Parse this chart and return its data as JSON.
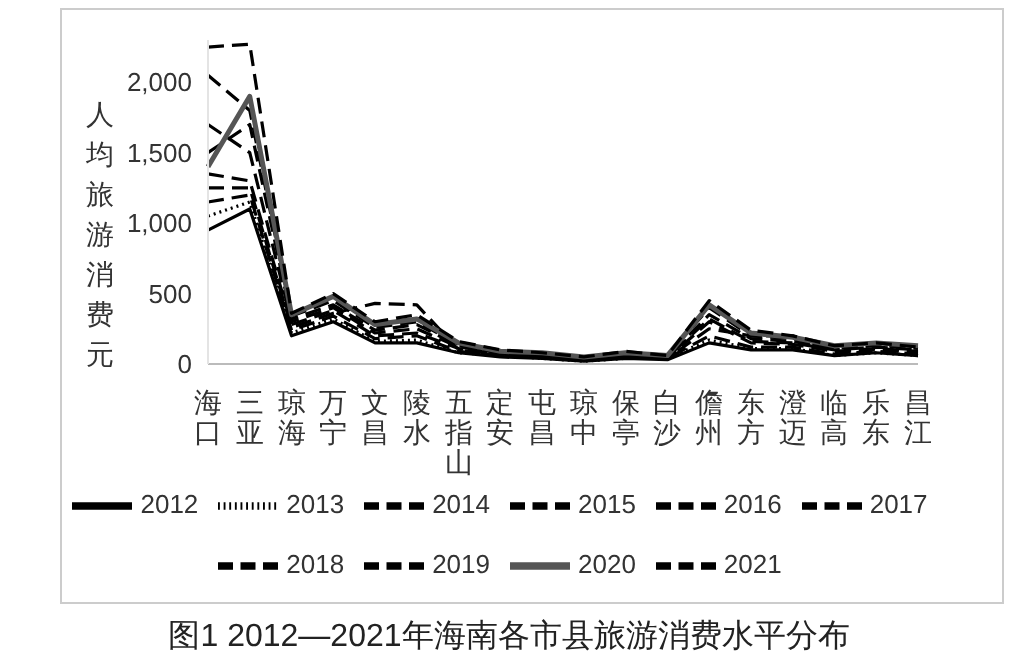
{
  "chart_data": {
    "type": "line",
    "title": "图1 2012—2021年海南各市县旅游消费水平分布",
    "ylabel": "人均旅游消费元",
    "categories": [
      "海口",
      "三亚",
      "琼海",
      "万宁",
      "文昌",
      "陵水",
      "五指山",
      "定安",
      "屯昌",
      "琼中",
      "保亭",
      "白沙",
      "儋州",
      "东方",
      "澄迈",
      "临高",
      "乐东",
      "昌江"
    ],
    "ylim": [
      0,
      2300
    ],
    "yticks": [
      0,
      500,
      {
        "value": 1000,
        "label": "1,000"
      },
      {
        "value": 1500,
        "label": "1,500"
      },
      {
        "value": 2000,
        "label": "2,000"
      }
    ],
    "legend": "bottom",
    "marker": "none",
    "series": [
      {
        "name": "2012",
        "color": "#000000",
        "line_style": "solid",
        "values": [
          950,
          1100,
          200,
          300,
          150,
          150,
          80,
          50,
          40,
          20,
          40,
          30,
          150,
          100,
          100,
          60,
          80,
          60
        ]
      },
      {
        "name": "2013",
        "color": "#000000",
        "line_style": "dotted",
        "values": [
          1050,
          1150,
          220,
          320,
          160,
          170,
          80,
          60,
          40,
          20,
          40,
          40,
          170,
          110,
          110,
          60,
          80,
          60
        ]
      },
      {
        "name": "2014",
        "color": "#000000",
        "line_style": "dashed",
        "values": [
          1150,
          1200,
          240,
          340,
          180,
          200,
          90,
          60,
          50,
          30,
          50,
          40,
          200,
          120,
          120,
          70,
          90,
          70
        ]
      },
      {
        "name": "2015",
        "color": "#000000",
        "line_style": "dashed",
        "values": [
          1250,
          1250,
          260,
          360,
          430,
          420,
          100,
          60,
          60,
          30,
          60,
          40,
          250,
          200,
          200,
          80,
          100,
          80
        ]
      },
      {
        "name": "2016",
        "color": "#000000",
        "line_style": "dashed",
        "values": [
          1350,
          1300,
          280,
          380,
          200,
          220,
          110,
          70,
          60,
          40,
          60,
          40,
          300,
          150,
          140,
          90,
          110,
          90
        ]
      },
      {
        "name": "2017",
        "color": "#000000",
        "line_style": "dashed",
        "values": [
          1700,
          1500,
          300,
          400,
          220,
          250,
          120,
          80,
          60,
          40,
          60,
          50,
          320,
          160,
          150,
          100,
          120,
          100
        ]
      },
      {
        "name": "2018",
        "color": "#000000",
        "line_style": "dashed",
        "values": [
          1500,
          1700,
          320,
          420,
          240,
          280,
          130,
          80,
          60,
          40,
          70,
          50,
          350,
          180,
          160,
          110,
          130,
          110
        ]
      },
      {
        "name": "2019",
        "color": "#000000",
        "line_style": "dashed",
        "values": [
          2050,
          1800,
          340,
          450,
          260,
          300,
          140,
          80,
          70,
          40,
          80,
          60,
          400,
          200,
          180,
          120,
          140,
          120
        ]
      },
      {
        "name": "2020",
        "color": "#555555",
        "line_style": "solid",
        "values": [
          1400,
          1900,
          350,
          480,
          280,
          320,
          150,
          90,
          80,
          50,
          80,
          60,
          420,
          220,
          190,
          130,
          150,
          130
        ]
      },
      {
        "name": "2021",
        "color": "#000000",
        "line_style": "dashed",
        "values": [
          2250,
          2270,
          360,
          500,
          300,
          350,
          160,
          100,
          80,
          50,
          90,
          60,
          450,
          240,
          200,
          130,
          150,
          120
        ]
      }
    ]
  }
}
